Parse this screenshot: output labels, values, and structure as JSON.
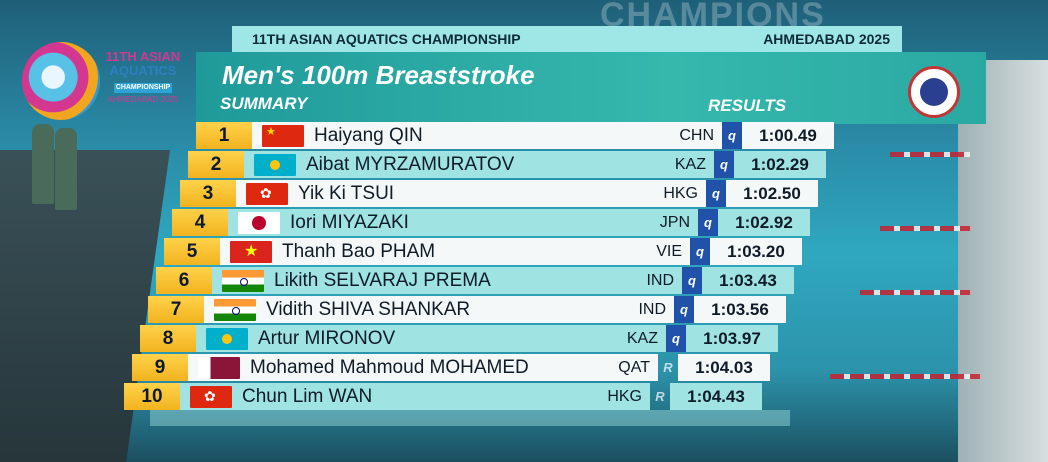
{
  "championship": "11TH ASIAN AQUATICS CHAMPIONSHIP",
  "location_year": "AHMEDABAD 2025",
  "event_title": "Men's 100m Breaststroke",
  "summary_label": "SUMMARY",
  "results_label": "RESULTS",
  "background_text": "CHAMPIONS",
  "logo": {
    "line1": "11TH ASIAN",
    "line2": "AQUATICS",
    "line3": "CHAMPIONSHIP",
    "line4": "AHMEDABAD 2025"
  },
  "colors": {
    "header_teal": "#2aa9a3",
    "rank_yellow": "#f2b31f",
    "qualifier_blue": "#1f52a8",
    "row_light": "#f5f8f8",
    "row_cyan": "#9fe3e2"
  },
  "results": [
    {
      "rank": "1",
      "name": "Haiyang QIN",
      "country": "CHN",
      "flag": "china-flag-icon",
      "q": "q",
      "time": "1:00.49"
    },
    {
      "rank": "2",
      "name": "Aibat MYRZAMURATOV",
      "country": "KAZ",
      "flag": "kazakhstan-flag-icon",
      "q": "q",
      "time": "1:02.29"
    },
    {
      "rank": "3",
      "name": "Yik Ki TSUI",
      "country": "HKG",
      "flag": "hong-kong-flag-icon",
      "q": "q",
      "time": "1:02.50"
    },
    {
      "rank": "4",
      "name": "Iori MIYAZAKI",
      "country": "JPN",
      "flag": "japan-flag-icon",
      "q": "q",
      "time": "1:02.92"
    },
    {
      "rank": "5",
      "name": "Thanh Bao PHAM",
      "country": "VIE",
      "flag": "vietnam-flag-icon",
      "q": "q",
      "time": "1:03.20"
    },
    {
      "rank": "6",
      "name": "Likith SELVARAJ PREMA",
      "country": "IND",
      "flag": "india-flag-icon",
      "q": "q",
      "time": "1:03.43"
    },
    {
      "rank": "7",
      "name": "Vidith SHIVA SHANKAR",
      "country": "IND",
      "flag": "india-flag-icon",
      "q": "q",
      "time": "1:03.56"
    },
    {
      "rank": "8",
      "name": "Artur MIRONOV",
      "country": "KAZ",
      "flag": "kazakhstan-flag-icon",
      "q": "q",
      "time": "1:03.97"
    },
    {
      "rank": "9",
      "name": "Mohamed Mahmoud MOHAMED",
      "country": "QAT",
      "flag": "qatar-flag-icon",
      "q": "R",
      "time": "1:04.03"
    },
    {
      "rank": "10",
      "name": "Chun Lim WAN",
      "country": "HKG",
      "flag": "hong-kong-flag-icon",
      "q": "R",
      "time": "1:04.43"
    }
  ]
}
